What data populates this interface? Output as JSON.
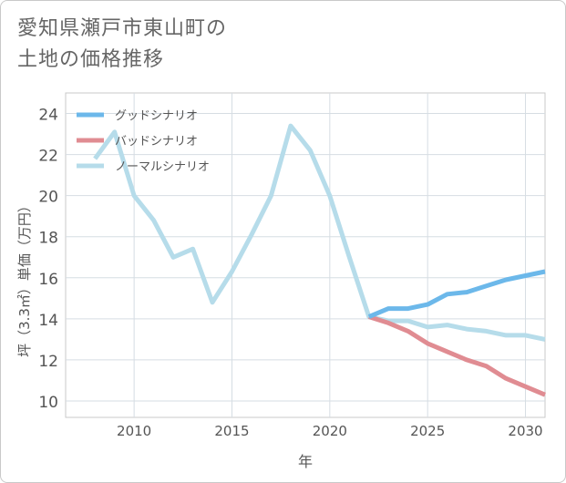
{
  "title_lines": [
    "愛知県瀬戸市東山町の",
    "土地の価格推移"
  ],
  "chart_data": {
    "type": "line",
    "xlabel": "年",
    "ylabel": "坪（3.3㎡）単価（万円）",
    "xlim": [
      2006.5,
      2031
    ],
    "ylim": [
      9.2,
      25
    ],
    "xticks": [
      2010,
      2015,
      2020,
      2025,
      2030
    ],
    "yticks": [
      10,
      12,
      14,
      16,
      18,
      20,
      22,
      24
    ],
    "grid": true,
    "legend_position": "top-left",
    "series": [
      {
        "name": "グッドシナリオ",
        "color": "#6cb8ea",
        "x": [
          2022,
          2023,
          2024,
          2025,
          2026,
          2027,
          2028,
          2029,
          2030,
          2031
        ],
        "y": [
          14.1,
          14.5,
          14.5,
          14.7,
          15.2,
          15.3,
          15.6,
          15.9,
          16.1,
          16.3
        ]
      },
      {
        "name": "バッドシナリオ",
        "color": "#e08c92",
        "x": [
          2022,
          2023,
          2024,
          2025,
          2026,
          2027,
          2028,
          2029,
          2030,
          2031
        ],
        "y": [
          14.1,
          13.8,
          13.4,
          12.8,
          12.4,
          12.0,
          11.7,
          11.1,
          10.7,
          10.3
        ]
      },
      {
        "name": "ノーマルシナリオ",
        "color": "#b6dcea",
        "x": [
          2008,
          2009,
          2010,
          2011,
          2012,
          2013,
          2014,
          2015,
          2016,
          2017,
          2018,
          2019,
          2020,
          2021,
          2022,
          2023,
          2024,
          2025,
          2026,
          2027,
          2028,
          2029,
          2030,
          2031
        ],
        "y": [
          21.8,
          23.1,
          20.0,
          18.8,
          17.0,
          17.4,
          14.8,
          16.3,
          18.1,
          20.0,
          23.4,
          22.2,
          20.0,
          17.0,
          14.1,
          13.9,
          13.9,
          13.6,
          13.7,
          13.5,
          13.4,
          13.2,
          13.2,
          13.0
        ]
      }
    ]
  }
}
